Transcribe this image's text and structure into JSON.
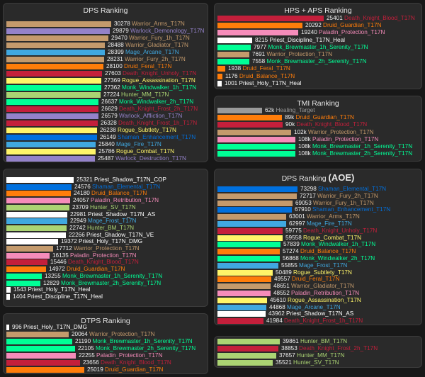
{
  "colors": {
    "warrior": "#c49a6c",
    "warlock": "#9482c9",
    "deathknight": "#c41f3b",
    "mage": "#40a8e0",
    "druid": "#ff7d0a",
    "rogue": "#fff569",
    "monk": "#00ff96",
    "hunter": "#abd473",
    "shaman": "#0070de",
    "priest": "#ffffff",
    "paladin": "#f58cba",
    "healing": "#9a9a9a"
  },
  "panels": [
    {
      "id": "dps",
      "title": "DPS Ranking",
      "title_suffix": "",
      "rows": [
        {
          "value": "30278",
          "label": "Warrior_Arms_T17N",
          "cls": "warrior"
        },
        {
          "value": "29879",
          "label": "Warlock_Demonology_T17N",
          "cls": "warlock"
        },
        {
          "value": "29470",
          "label": "Warrior_Fury_1h_T17N",
          "cls": "warrior"
        },
        {
          "value": "28488",
          "label": "Warrior_Gladiator_T17N",
          "cls": "warrior"
        },
        {
          "value": "28399",
          "label": "Mage_Arcane_T17N",
          "cls": "mage"
        },
        {
          "value": "28231",
          "label": "Warrior_Fury_2h_T17N",
          "cls": "warrior"
        },
        {
          "value": "28100",
          "label": "Druid_Feral_T17N",
          "cls": "druid"
        },
        {
          "value": "27603",
          "label": "Death_Knight_Unholy_T17N",
          "cls": "deathknight"
        },
        {
          "value": "27369",
          "label": "Rogue_Assassination_T17N",
          "cls": "rogue"
        },
        {
          "value": "27362",
          "label": "Monk_Windwalker_1h_T17N",
          "cls": "monk"
        },
        {
          "value": "27224",
          "label": "Hunter_MM_T17N",
          "cls": "hunter"
        },
        {
          "value": "26637",
          "label": "Monk_Windwalker_2h_T17N",
          "cls": "monk"
        },
        {
          "value": "26629",
          "label": "Death_Knight_Frost_2h_T17N",
          "cls": "deathknight"
        },
        {
          "value": "26579",
          "label": "Warlock_Affliction_T17N",
          "cls": "warlock"
        },
        {
          "value": "26328",
          "label": "Death_Knight_Frost_1h_T17N",
          "cls": "deathknight"
        },
        {
          "value": "26238",
          "label": "Rogue_Subtlety_T17N",
          "cls": "rogue"
        },
        {
          "value": "26149",
          "label": "Shaman_Enhancement_T17N",
          "cls": "shaman"
        },
        {
          "value": "25840",
          "label": "Mage_Fire_T17N",
          "cls": "mage"
        },
        {
          "value": "25786",
          "label": "Rogue_Combat_T17N",
          "cls": "rogue"
        },
        {
          "value": "25487",
          "label": "Warlock_Destruction_T17N",
          "cls": "warlock"
        }
      ]
    },
    {
      "id": "hps",
      "title": "HPS + APS Ranking",
      "title_suffix": "",
      "rows": [
        {
          "value": "25401",
          "label": "Death_Knight_Blood_T17N",
          "cls": "deathknight"
        },
        {
          "value": "20292",
          "label": "Druid_Guardian_T17N",
          "cls": "druid"
        },
        {
          "value": "19240",
          "label": "Paladin_Protection_T17N",
          "cls": "paladin"
        },
        {
          "value": "8215",
          "label": "Priest_Discipline_T17N_Heal",
          "cls": "priest"
        },
        {
          "value": "7977",
          "label": "Monk_Brewmaster_1h_Serenity_T17N",
          "cls": "monk"
        },
        {
          "value": "7691",
          "label": "Warrior_Protection_T17N",
          "cls": "warrior"
        },
        {
          "value": "7558",
          "label": "Monk_Brewmaster_2h_Serenity_T17N",
          "cls": "monk"
        },
        {
          "value": "1938",
          "label": "Druid_Feral_T17N",
          "cls": "druid"
        },
        {
          "value": "1176",
          "label": "Druid_Balance_T17N",
          "cls": "druid"
        },
        {
          "value": "1001",
          "label": "Priest_Holy_T17N_Heal",
          "cls": "priest"
        }
      ]
    },
    {
      "id": "tmi",
      "title": "TMI Ranking",
      "title_suffix": "",
      "rows": [
        {
          "value": "62k",
          "num": 62,
          "label": "Healing_Target",
          "cls": "healing"
        },
        {
          "value": "89k",
          "num": 89,
          "label": "Druid_Guardian_T17N",
          "cls": "druid"
        },
        {
          "value": "90k",
          "num": 90,
          "label": "Death_Knight_Blood_T17N",
          "cls": "deathknight"
        },
        {
          "value": "102k",
          "num": 102,
          "label": "Warrior_Protection_T17N",
          "cls": "warrior"
        },
        {
          "value": "108k",
          "num": 108,
          "label": "Paladin_Protection_T17N",
          "cls": "paladin"
        },
        {
          "value": "108k",
          "num": 108,
          "label": "Monk_Brewmaster_1h_Serenity_T17N",
          "cls": "monk"
        },
        {
          "value": "108k",
          "num": 108,
          "label": "Monk_Brewmaster_2h_Serenity_T17N",
          "cls": "monk"
        }
      ]
    },
    {
      "id": "untitled",
      "title": "",
      "title_suffix": "",
      "rows": [
        {
          "value": "25321",
          "label": "Priest_Shadow_T17N_COP",
          "cls": "priest"
        },
        {
          "value": "24576",
          "label": "Shaman_Elemental_T17N",
          "cls": "shaman"
        },
        {
          "value": "24180",
          "label": "Druid_Balance_T17N",
          "cls": "druid"
        },
        {
          "value": "24057",
          "label": "Paladin_Retribution_T17N",
          "cls": "paladin"
        },
        {
          "value": "23709",
          "label": "Hunter_SV_T17N",
          "cls": "hunter"
        },
        {
          "value": "22981",
          "label": "Priest_Shadow_T17N_AS",
          "cls": "priest"
        },
        {
          "value": "22949",
          "label": "Mage_Frost_T17N",
          "cls": "mage"
        },
        {
          "value": "22742",
          "label": "Hunter_BM_T17N",
          "cls": "hunter"
        },
        {
          "value": "22266",
          "label": "Priest_Shadow_T17N_VE",
          "cls": "priest"
        },
        {
          "value": "19372",
          "label": "Priest_Holy_T17N_DMG",
          "cls": "priest"
        },
        {
          "value": "17712",
          "label": "Warrior_Protection_T17N",
          "cls": "warrior"
        },
        {
          "value": "16135",
          "label": "Paladin_Protection_T17N",
          "cls": "paladin"
        },
        {
          "value": "15446",
          "label": "Death_Knight_Blood_T17N",
          "cls": "deathknight"
        },
        {
          "value": "14972",
          "label": "Druid_Guardian_T17N",
          "cls": "druid"
        },
        {
          "value": "13255",
          "label": "Monk_Brewmaster_1h_Serenity_T17N",
          "cls": "monk"
        },
        {
          "value": "12829",
          "label": "Monk_Brewmaster_2h_Serenity_T17N",
          "cls": "monk"
        },
        {
          "value": "1543",
          "label": "Priest_Holy_T17N_Heal",
          "cls": "priest"
        },
        {
          "value": "1404",
          "label": "Priest_Discipline_T17N_Heal",
          "cls": "priest"
        }
      ]
    },
    {
      "id": "aoe",
      "title": "DPS Ranking",
      "title_suffix": "(AOE)",
      "rows": [
        {
          "value": "73298",
          "label": "Shaman_Elemental_T17N",
          "cls": "shaman"
        },
        {
          "value": "72717",
          "label": "Warrior_Fury_2h_T17N",
          "cls": "warrior"
        },
        {
          "value": "69053",
          "label": "Warrior_Fury_1h_T17N",
          "cls": "warrior"
        },
        {
          "value": "67910",
          "label": "Shaman_Enhancement_T17N",
          "cls": "shaman"
        },
        {
          "value": "63001",
          "label": "Warrior_Arms_T17N",
          "cls": "warrior"
        },
        {
          "value": "62997",
          "label": "Mage_Fire_T17N",
          "cls": "mage"
        },
        {
          "value": "59775",
          "label": "Death_Knight_Unholy_T17N",
          "cls": "deathknight"
        },
        {
          "value": "59558",
          "label": "Rogue_Combat_T17N",
          "cls": "rogue"
        },
        {
          "value": "57839",
          "label": "Monk_Windwalker_1h_T17N",
          "cls": "monk"
        },
        {
          "value": "57274",
          "label": "Druid_Balance_T17N",
          "cls": "druid"
        },
        {
          "value": "56868",
          "label": "Monk_Windwalker_2h_T17N",
          "cls": "monk"
        },
        {
          "value": "55855",
          "label": "Mage_Frost_T17N",
          "cls": "mage"
        },
        {
          "value": "50489",
          "label": "Rogue_Subtlety_T17N",
          "cls": "rogue"
        },
        {
          "value": "49557",
          "label": "Druid_Feral_T17N",
          "cls": "druid"
        },
        {
          "value": "48651",
          "label": "Warrior_Gladiator_T17N",
          "cls": "warrior"
        },
        {
          "value": "48552",
          "label": "Paladin_Retribution_T17N",
          "cls": "paladin"
        },
        {
          "value": "45610",
          "label": "Rogue_Assassination_T17N",
          "cls": "rogue"
        },
        {
          "value": "44868",
          "label": "Mage_Arcane_T17N",
          "cls": "mage"
        },
        {
          "value": "43962",
          "label": "Priest_Shadow_T17N_AS",
          "cls": "priest"
        },
        {
          "value": "41984",
          "label": "Death_Knight_Frost_1h_T17N",
          "cls": "deathknight"
        }
      ]
    },
    {
      "id": "dtps",
      "title": "DTPS Ranking",
      "title_suffix": "",
      "rows": [
        {
          "value": "996",
          "label": "Priest_Holy_T17N_DMG",
          "cls": "priest"
        },
        {
          "value": "20064",
          "label": "Warrior_Protection_T17N",
          "cls": "warrior"
        },
        {
          "value": "21190",
          "label": "Monk_Brewmaster_1h_Serenity_T17N",
          "cls": "monk"
        },
        {
          "value": "22105",
          "label": "Monk_Brewmaster_2h_Serenity_T17N",
          "cls": "monk"
        },
        {
          "value": "22255",
          "label": "Paladin_Protection_T17N",
          "cls": "paladin"
        },
        {
          "value": "23656",
          "label": "Death_Knight_Blood_T17N",
          "cls": "deathknight"
        },
        {
          "value": "25019",
          "label": "Druid_Guardian_T17N",
          "cls": "druid"
        }
      ]
    },
    {
      "id": "aoe2",
      "title": "",
      "title_suffix": "",
      "rows": [
        {
          "value": "39861",
          "label": "Hunter_BM_T17N",
          "cls": "hunter"
        },
        {
          "value": "38853",
          "label": "Death_Knight_Frost_2h_T17N",
          "cls": "deathknight"
        },
        {
          "value": "37657",
          "label": "Hunter_MM_T17N",
          "cls": "hunter"
        },
        {
          "value": "35521",
          "label": "Hunter_SV_T17N",
          "cls": "hunter"
        }
      ]
    }
  ]
}
